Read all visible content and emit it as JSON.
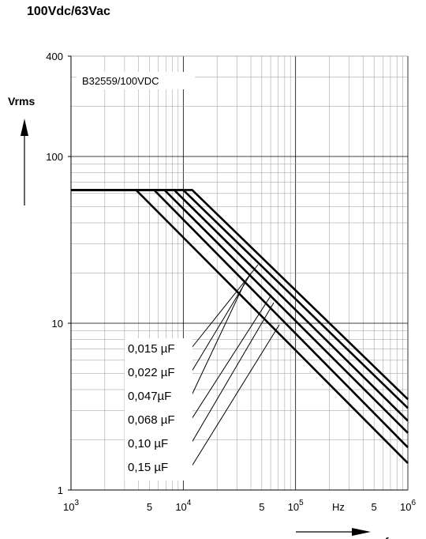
{
  "heading": "100Vdc/63Vac",
  "chart_data": {
    "type": "line",
    "title": "B32559/100VDC",
    "ylabel": "Vrms",
    "xlabel": "f",
    "x_scale": "log",
    "y_scale": "log",
    "xlim": [
      1000,
      1000000
    ],
    "ylim": [
      1,
      400
    ],
    "x_ticks": [
      {
        "label": "10",
        "sup": "3"
      },
      {
        "label": "5",
        "sup": ""
      },
      {
        "label": "10",
        "sup": "4"
      },
      {
        "label": "5",
        "sup": ""
      },
      {
        "label": "10",
        "sup": "5"
      },
      {
        "label": "Hz",
        "sup": ""
      },
      {
        "label": "5",
        "sup": ""
      },
      {
        "label": "10",
        "sup": "6"
      }
    ],
    "y_ticks": [
      "1",
      "10",
      "100",
      "400"
    ],
    "series": [
      {
        "name": "0,015 µF",
        "x": [
          1000,
          12000,
          1000000
        ],
        "y": [
          63,
          63,
          3.5
        ]
      },
      {
        "name": "0,022 µF",
        "x": [
          1000,
          10000,
          1000000
        ],
        "y": [
          63,
          63,
          3.1
        ]
      },
      {
        "name": "0,047µF",
        "x": [
          1000,
          8300,
          1000000
        ],
        "y": [
          63,
          63,
          2.6
        ]
      },
      {
        "name": "0,068 µF",
        "x": [
          1000,
          6800,
          1000000
        ],
        "y": [
          63,
          63,
          2.2
        ]
      },
      {
        "name": "0,10 µF",
        "x": [
          1000,
          5500,
          1000000
        ],
        "y": [
          63,
          63,
          1.8
        ]
      },
      {
        "name": "0,15 µF",
        "x": [
          1000,
          3800,
          1000000
        ],
        "y": [
          63,
          63,
          1.45
        ]
      }
    ],
    "grid": true
  }
}
